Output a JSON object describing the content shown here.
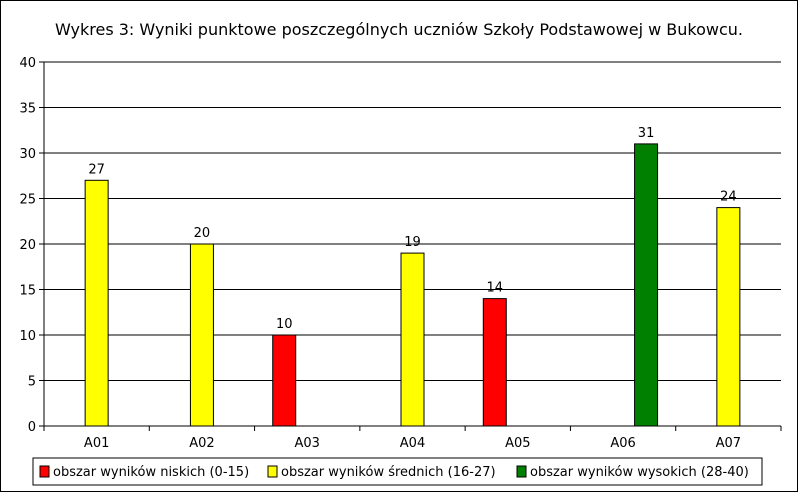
{
  "chart_data": {
    "type": "bar",
    "title": "Wykres 3: Wyniki punktowe poszczególnych uczniów Szkoły Podstawowej w Bukowcu.",
    "categories": [
      "A01",
      "A02",
      "A03",
      "A04",
      "A05",
      "A06",
      "A07"
    ],
    "series": [
      {
        "name": "obszar wyników niskich (0-15)",
        "color": "#ff0000",
        "values": [
          null,
          null,
          10,
          null,
          14,
          null,
          null
        ]
      },
      {
        "name": "obszar wyników średnich (16-27)",
        "color": "#ffff00",
        "values": [
          27,
          20,
          null,
          19,
          null,
          null,
          24
        ]
      },
      {
        "name": "obszar wyników wysokich (28-40)",
        "color": "#008000",
        "values": [
          null,
          null,
          null,
          null,
          null,
          31,
          null
        ]
      }
    ],
    "ylim": [
      0,
      40
    ],
    "yticks": [
      0,
      5,
      10,
      15,
      20,
      25,
      30,
      35,
      40
    ],
    "grid": true,
    "legend_position": "bottom",
    "xlabel": "",
    "ylabel": ""
  }
}
